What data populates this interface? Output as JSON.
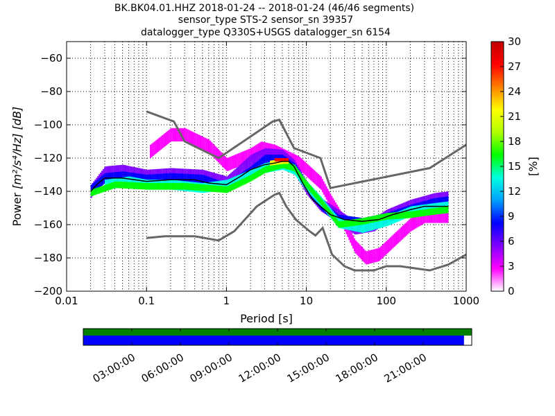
{
  "chart_data": {
    "type": "heatmap",
    "title_lines": [
      "BK.BK04.01.HHZ   2018-01-24 -- 2018-01-24  (46/46 segments)",
      "sensor_type STS-2 sensor_sn 39357",
      "datalogger_type Q330S+USGS datalogger_sn 6154"
    ],
    "xlabel": "Period [s]",
    "ylabel_prefix": "Power ",
    "ylabel_units": "[m²/s⁴/Hz] [dB]",
    "x_scale": "log",
    "xlim": [
      0.01,
      1000
    ],
    "ylim": [
      -200,
      -50
    ],
    "x_tick_labels": [
      "0.01",
      "0.1",
      "1",
      "10",
      "100",
      "1000"
    ],
    "y_tick_labels": [
      "−60",
      "−80",
      "−100",
      "−120",
      "−140",
      "−160",
      "−180",
      "−200"
    ],
    "y_tick_values": [
      -60,
      -80,
      -100,
      -120,
      -140,
      -160,
      -180,
      -200
    ],
    "grid": true,
    "colorbar": {
      "label": "[%]",
      "min": 0,
      "max": 30,
      "tick_labels": [
        "0",
        "3",
        "6",
        "9",
        "12",
        "15",
        "18",
        "21",
        "24",
        "27",
        "30"
      ],
      "colors": [
        "#ffffff",
        "#ff00ff",
        "#8000ff",
        "#0000ff",
        "#00a0ff",
        "#00ffe0",
        "#00ff00",
        "#b0ff00",
        "#ffff00",
        "#ff8000",
        "#ff0000",
        "#c00000"
      ]
    },
    "series": [
      {
        "role": "noise-model-high",
        "color": "#666666",
        "points": [
          [
            0.1,
            -92
          ],
          [
            0.22,
            -98
          ],
          [
            0.3,
            -110
          ],
          [
            0.8,
            -120
          ],
          [
            3.8,
            -98
          ],
          [
            4.6,
            -97
          ],
          [
            7,
            -114
          ],
          [
            15,
            -120
          ],
          [
            20,
            -138
          ],
          [
            350,
            -126
          ],
          [
            1000,
            -112
          ]
        ]
      },
      {
        "role": "noise-model-low",
        "color": "#666666",
        "points": [
          [
            0.1,
            -168
          ],
          [
            0.17,
            -167
          ],
          [
            0.4,
            -167
          ],
          [
            0.8,
            -169.5
          ],
          [
            1.25,
            -164
          ],
          [
            2.4,
            -149
          ],
          [
            4,
            -142
          ],
          [
            4.6,
            -141
          ],
          [
            5.6,
            -149
          ],
          [
            7.4,
            -157
          ],
          [
            11,
            -164
          ],
          [
            13,
            -166.5
          ],
          [
            16,
            -162
          ],
          [
            21,
            -178
          ],
          [
            30,
            -185
          ],
          [
            40,
            -187.5
          ],
          [
            70,
            -187.5
          ],
          [
            100,
            -185
          ],
          [
            150,
            -185
          ],
          [
            350,
            -187.5
          ],
          [
            600,
            -184
          ],
          [
            1000,
            -178
          ]
        ]
      },
      {
        "role": "mean-psd",
        "color": "#000000",
        "points": [
          [
            0.02,
            -140
          ],
          [
            0.025,
            -135
          ],
          [
            0.03,
            -132
          ],
          [
            0.05,
            -132
          ],
          [
            0.1,
            -134
          ],
          [
            0.2,
            -133
          ],
          [
            0.4,
            -133
          ],
          [
            0.6,
            -135
          ],
          [
            1,
            -136
          ],
          [
            1.5,
            -131
          ],
          [
            2,
            -127
          ],
          [
            3,
            -124
          ],
          [
            4,
            -123
          ],
          [
            5,
            -122
          ],
          [
            6,
            -122
          ],
          [
            7,
            -125
          ],
          [
            9,
            -135
          ],
          [
            12,
            -145
          ],
          [
            15,
            -149
          ],
          [
            20,
            -154
          ],
          [
            30,
            -157
          ],
          [
            50,
            -158
          ],
          [
            80,
            -157
          ],
          [
            120,
            -154
          ],
          [
            200,
            -151
          ],
          [
            300,
            -149
          ],
          [
            600,
            -149
          ]
        ]
      }
    ],
    "density_bands": [
      {
        "color": "#ff00ff",
        "points": [
          [
            0.11,
            -116
          ],
          [
            0.2,
            -106
          ],
          [
            0.3,
            -106
          ],
          [
            0.6,
            -113
          ],
          [
            1,
            -124
          ],
          [
            2,
            -118
          ],
          [
            2.7,
            -114
          ],
          [
            4,
            -116
          ],
          [
            8,
            -123
          ],
          [
            15,
            -135
          ],
          [
            20,
            -146
          ],
          [
            30,
            -160
          ],
          [
            40,
            -173
          ],
          [
            55,
            -180
          ],
          [
            80,
            -178
          ],
          [
            120,
            -170
          ],
          [
            200,
            -160
          ],
          [
            300,
            -155
          ],
          [
            600,
            -155
          ]
        ],
        "spread": 4
      },
      {
        "color": "#8000ff",
        "points": [
          [
            0.02,
            -140
          ],
          [
            0.03,
            -129
          ],
          [
            0.05,
            -128
          ],
          [
            0.1,
            -131
          ],
          [
            0.2,
            -130
          ],
          [
            0.5,
            -131
          ],
          [
            1,
            -135
          ],
          [
            2,
            -122
          ],
          [
            3,
            -118
          ],
          [
            5,
            -119
          ],
          [
            7,
            -125
          ],
          [
            10,
            -138
          ],
          [
            15,
            -148
          ],
          [
            25,
            -155
          ],
          [
            40,
            -162
          ],
          [
            70,
            -160
          ],
          [
            100,
            -155
          ],
          [
            200,
            -149
          ],
          [
            400,
            -145
          ],
          [
            600,
            -144
          ]
        ],
        "spread": 4
      },
      {
        "color": "#0000ff",
        "points": [
          [
            0.02,
            -139
          ],
          [
            0.03,
            -132
          ],
          [
            0.05,
            -131
          ],
          [
            0.1,
            -133
          ],
          [
            0.2,
            -132
          ],
          [
            0.5,
            -133
          ],
          [
            1,
            -138
          ],
          [
            1.5,
            -132
          ],
          [
            2,
            -128
          ],
          [
            3,
            -121
          ],
          [
            5,
            -121
          ],
          [
            7,
            -126
          ],
          [
            10,
            -137
          ],
          [
            15,
            -148
          ],
          [
            25,
            -157
          ],
          [
            50,
            -159
          ],
          [
            100,
            -156
          ],
          [
            200,
            -151
          ],
          [
            400,
            -147
          ],
          [
            600,
            -146
          ]
        ],
        "spread": 3
      },
      {
        "color": "#00ffe0",
        "points": [
          [
            0.03,
            -136
          ],
          [
            0.06,
            -134
          ],
          [
            0.1,
            -136
          ],
          [
            0.2,
            -136
          ],
          [
            0.5,
            -138
          ],
          [
            1,
            -136
          ],
          [
            2,
            -130
          ],
          [
            3,
            -126
          ],
          [
            5,
            -124
          ],
          [
            7,
            -127
          ],
          [
            10,
            -137
          ],
          [
            15,
            -146
          ],
          [
            25,
            -159
          ],
          [
            50,
            -162
          ],
          [
            100,
            -158
          ],
          [
            200,
            -152
          ],
          [
            400,
            -150
          ],
          [
            600,
            -149
          ]
        ],
        "spread": 3
      },
      {
        "color": "#00ff00",
        "points": [
          [
            0.02,
            -141
          ],
          [
            0.04,
            -136
          ],
          [
            0.1,
            -137
          ],
          [
            0.3,
            -137
          ],
          [
            1,
            -139
          ],
          [
            2,
            -132
          ],
          [
            3,
            -127
          ],
          [
            5,
            -124
          ],
          [
            7,
            -126
          ],
          [
            10,
            -136
          ],
          [
            15,
            -146
          ],
          [
            25,
            -160
          ],
          [
            50,
            -158
          ],
          [
            100,
            -155
          ],
          [
            200,
            -154
          ],
          [
            400,
            -152
          ],
          [
            600,
            -151
          ]
        ],
        "spread": 2
      },
      {
        "color": "#ffff00",
        "points": [
          [
            3.5,
            -123
          ],
          [
            5,
            -122
          ],
          [
            6,
            -122
          ]
        ],
        "spread": 1.5
      },
      {
        "color": "#ff0000",
        "points": [
          [
            4,
            -121
          ],
          [
            5,
            -121
          ],
          [
            6,
            -121
          ]
        ],
        "spread": 1
      }
    ]
  },
  "time_bar": {
    "labels": [
      "03:00:00",
      "06:00:00",
      "09:00:00",
      "12:00:00",
      "15:00:00",
      "18:00:00",
      "21:00:00"
    ],
    "hours": [
      3,
      6,
      9,
      12,
      15,
      18,
      21
    ],
    "top_strip_color": "#008000",
    "data_strip_color": "#0000ff",
    "coverage_fraction": 0.98
  }
}
